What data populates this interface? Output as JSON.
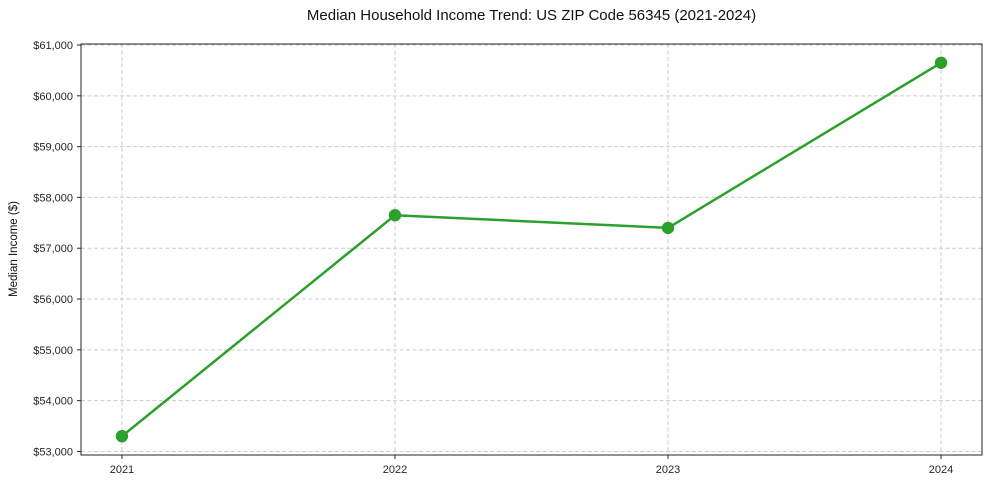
{
  "chart_data": {
    "type": "line",
    "title": "Median Household Income Trend: US ZIP Code 56345 (2021-2024)",
    "xlabel": "",
    "ylabel": "Median Income ($)",
    "x": [
      2021,
      2022,
      2023,
      2024
    ],
    "xtick_labels": [
      "2021",
      "2022",
      "2023",
      "2024"
    ],
    "series": [
      {
        "name": "Median Household Income",
        "values": [
          53300,
          57650,
          57400,
          60650
        ]
      }
    ],
    "yticks": [
      53000,
      54000,
      55000,
      56000,
      57000,
      58000,
      59000,
      60000,
      61000
    ],
    "ytick_labels": [
      "$53,000",
      "$54,000",
      "$55,000",
      "$56,000",
      "$57,000",
      "$58,000",
      "$59,000",
      "$60,000",
      "$61,000"
    ],
    "ylim": [
      52930,
      61020
    ],
    "grid": true,
    "legend": false,
    "line_color": "#2ca02c",
    "marker_color": "#2ca02c",
    "grid_color": "#cccccc",
    "axis_color": "#262626",
    "text_color": "#262626"
  }
}
